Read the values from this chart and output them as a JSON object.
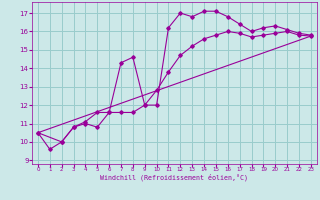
{
  "xlabel": "Windchill (Refroidissement éolien,°C)",
  "xlim": [
    -0.5,
    23.5
  ],
  "ylim": [
    8.8,
    17.6
  ],
  "yticks": [
    9,
    10,
    11,
    12,
    13,
    14,
    15,
    16,
    17
  ],
  "xticks": [
    0,
    1,
    2,
    3,
    4,
    5,
    6,
    7,
    8,
    9,
    10,
    11,
    12,
    13,
    14,
    15,
    16,
    17,
    18,
    19,
    20,
    21,
    22,
    23
  ],
  "bg_color": "#cce8e8",
  "grid_color": "#99cccc",
  "line_color": "#990099",
  "markersize": 1.8,
  "linewidth": 0.8,
  "series1_x": [
    0,
    1,
    2,
    3,
    4,
    5,
    6,
    7,
    8,
    9,
    10,
    11,
    12,
    13,
    14,
    15,
    16,
    17,
    18,
    19,
    20,
    21,
    22,
    23
  ],
  "series1_y": [
    10.5,
    9.6,
    10.0,
    10.8,
    11.0,
    10.8,
    11.6,
    14.3,
    14.6,
    12.0,
    12.0,
    16.2,
    17.0,
    16.8,
    17.1,
    17.1,
    16.8,
    16.4,
    16.0,
    16.2,
    16.3,
    16.1,
    15.9,
    15.8
  ],
  "series2_x": [
    0,
    2,
    3,
    4,
    5,
    6,
    7,
    8,
    9,
    10,
    11,
    12,
    13,
    14,
    15,
    16,
    17,
    18,
    19,
    20,
    21,
    22,
    23
  ],
  "series2_y": [
    10.5,
    10.0,
    10.8,
    11.1,
    11.6,
    11.6,
    11.6,
    11.6,
    12.0,
    12.8,
    13.8,
    14.7,
    15.2,
    15.6,
    15.8,
    16.0,
    15.9,
    15.7,
    15.8,
    15.9,
    16.0,
    15.8,
    15.75
  ],
  "series3_x": [
    0,
    23
  ],
  "series3_y": [
    10.5,
    15.75
  ]
}
